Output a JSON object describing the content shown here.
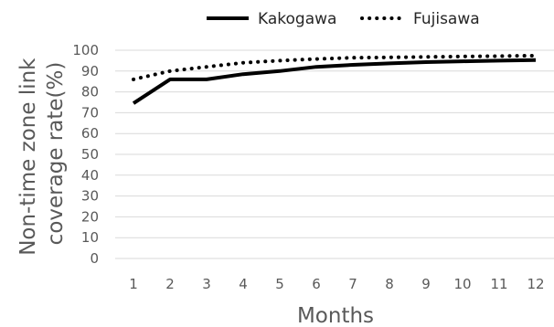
{
  "chart_data": {
    "type": "line",
    "title": "",
    "xlabel": "Months",
    "ylabel": "Non-time zone link coverage rate(%)",
    "ylabel_lines": [
      "Non-time zone link",
      "coverage rate(%)"
    ],
    "x": [
      1,
      2,
      3,
      4,
      5,
      6,
      7,
      8,
      9,
      10,
      11,
      12
    ],
    "xticks": [
      "1",
      "2",
      "3",
      "4",
      "5",
      "6",
      "7",
      "8",
      "9",
      "10",
      "11",
      "12"
    ],
    "ylim": [
      0,
      100
    ],
    "yticks": [
      "0",
      "10",
      "20",
      "30",
      "40",
      "50",
      "60",
      "70",
      "80",
      "90",
      "100"
    ],
    "grid": true,
    "legend_position": "top",
    "series": [
      {
        "name": "Kakogawa",
        "style": "solid",
        "color": "#000000",
        "values": [
          74.5,
          86,
          86,
          88.5,
          90,
          92,
          93,
          93.7,
          94.3,
          94.7,
          95,
          95.3
        ]
      },
      {
        "name": "Fujisawa",
        "style": "dotted",
        "color": "#000000",
        "values": [
          86,
          90,
          92,
          94,
          95,
          95.8,
          96.4,
          96.6,
          96.8,
          97,
          97.2,
          97.4
        ]
      }
    ]
  }
}
